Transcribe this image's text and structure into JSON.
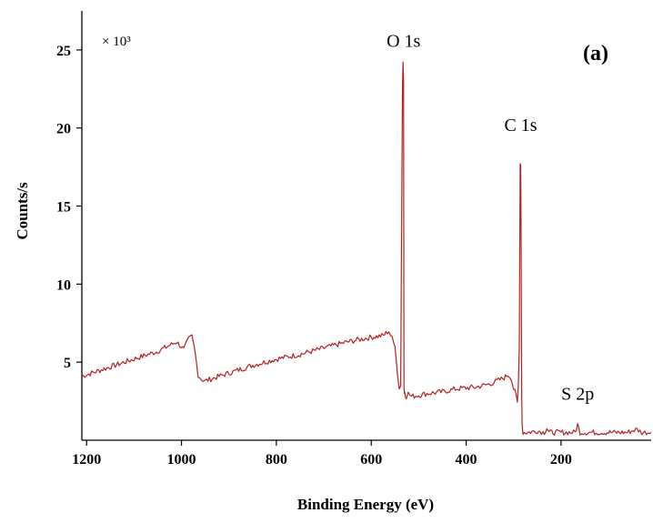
{
  "chart_data": {
    "type": "line",
    "title": "",
    "panel_label": "(a)",
    "xlabel": "Binding Energy (eV)",
    "ylabel": "Counts/s",
    "y_multiplier_label": "× 10³",
    "xlim": [
      1210,
      10
    ],
    "ylim": [
      0,
      27.5
    ],
    "x_reversed": true,
    "x_ticks": [
      1200,
      1000,
      800,
      600,
      400,
      200
    ],
    "y_ticks": [
      5,
      10,
      15,
      20,
      25
    ],
    "grid": false,
    "line_color": "#b22222",
    "peak_labels": [
      {
        "text": "O 1s",
        "x": 532,
        "y": 25.2
      },
      {
        "text": "C 1s",
        "x": 285,
        "y": 19.8
      },
      {
        "text": "S 2p",
        "x": 165,
        "y": 2.6
      }
    ],
    "series": [
      {
        "x": [
          1210,
          1160,
          1100,
          1050,
          1010,
          995,
          985,
          978,
          972,
          965,
          958,
          950,
          900,
          850,
          800,
          750,
          700,
          650,
          600,
          575,
          563,
          556,
          550,
          545,
          541,
          538,
          536,
          534,
          533,
          532,
          531,
          530,
          529,
          528,
          526,
          522,
          515,
          480,
          450,
          420,
          380,
          350,
          320,
          312,
          305,
          300,
          295,
          292,
          290,
          288,
          287,
          286,
          285,
          284,
          283,
          282,
          281,
          280,
          278,
          270,
          250,
          235,
          230,
          225,
          200,
          180,
          170,
          165,
          160,
          150,
          120,
          100,
          60,
          40,
          30,
          20,
          10
        ],
        "y": [
          4.1,
          4.6,
          5.2,
          5.7,
          6.3,
          5.8,
          6.5,
          6.7,
          5.8,
          4.2,
          3.9,
          3.8,
          4.3,
          4.8,
          5.2,
          5.5,
          5.9,
          6.3,
          6.6,
          6.7,
          7.0,
          6.5,
          6.0,
          4.4,
          3.4,
          3.5,
          14.0,
          22.8,
          24.3,
          23.0,
          3.4,
          3.0,
          3.1,
          2.9,
          2.8,
          3.0,
          2.8,
          3.0,
          3.1,
          3.3,
          3.4,
          3.6,
          4.0,
          4.2,
          4.0,
          3.3,
          2.9,
          2.4,
          3.5,
          6.0,
          12.0,
          17.7,
          17.6,
          12.0,
          3.0,
          1.2,
          0.6,
          0.5,
          0.5,
          0.5,
          0.6,
          0.5,
          0.8,
          0.5,
          0.5,
          0.5,
          0.5,
          1.0,
          0.5,
          0.5,
          0.5,
          0.5,
          0.5,
          0.7,
          0.5,
          0.5,
          0.5
        ]
      }
    ]
  }
}
